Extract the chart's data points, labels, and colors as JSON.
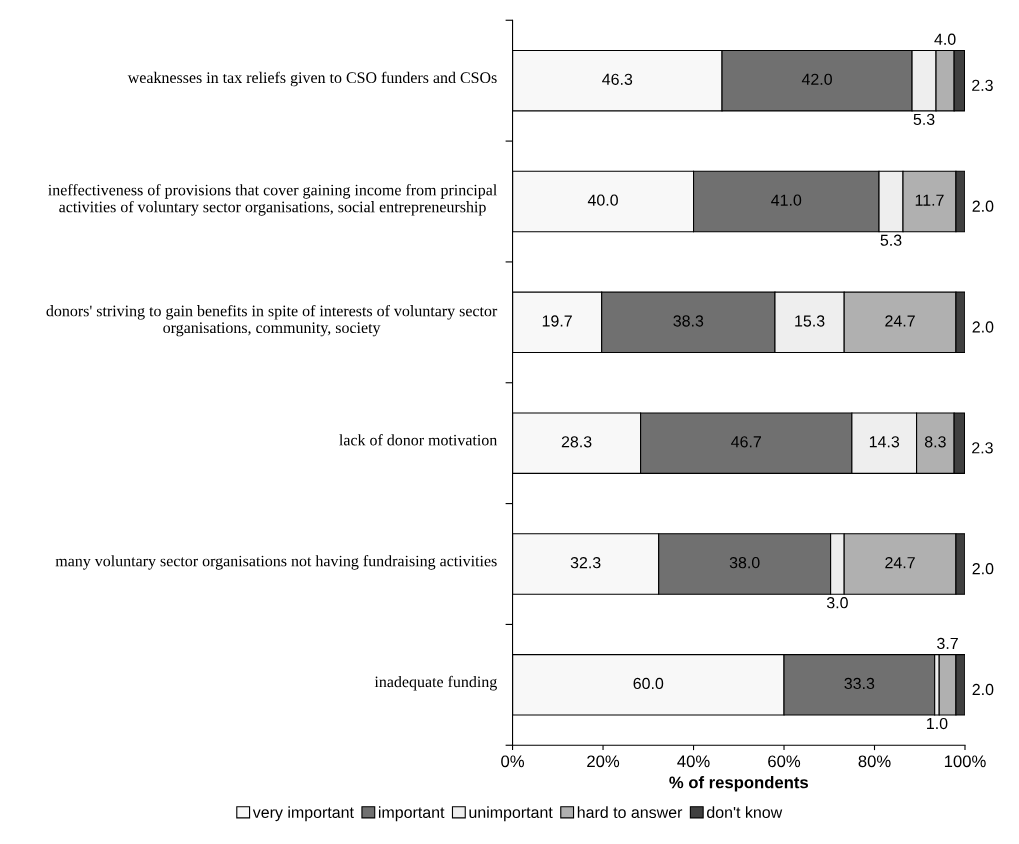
{
  "chart_data": {
    "type": "bar",
    "orientation": "horizontal",
    "stacked": true,
    "xlabel": "% of respondents",
    "categories": [
      "weaknesses in tax reliefs given to CSO funders and CSOs",
      "ineffectiveness of provisions that cover gaining income from principal activities of voluntary sector organisations, social entrepreneurship",
      "donors' striving to gain benefits in spite of interests of voluntary sector organisations, community, society",
      "lack of donor motivation",
      "many voluntary sector organisations not having fundraising activities",
      "inadequate funding"
    ],
    "series": [
      {
        "name": "very important",
        "color": "#f8f8f8",
        "values": [
          46.3,
          40.0,
          19.7,
          28.3,
          32.3,
          60.0
        ],
        "value_labels": [
          "46.3",
          "40.0",
          "19.7",
          "28.3",
          "32.3",
          "60.0"
        ]
      },
      {
        "name": "important",
        "color": "#707070",
        "values": [
          42.0,
          41.0,
          38.3,
          46.7,
          38.0,
          33.3
        ],
        "value_labels": [
          "42.0",
          "41.0",
          "38.3",
          "46.7",
          "38.0",
          "33.3"
        ]
      },
      {
        "name": "unimportant",
        "color": "#eeeeee",
        "values": [
          5.3,
          5.3,
          15.3,
          14.3,
          3.0,
          1.0
        ],
        "value_labels": [
          "5.3",
          "5.3",
          "15.3",
          "14.3",
          "3.0",
          "1.0"
        ]
      },
      {
        "name": "hard to answer",
        "color": "#b0b0b0",
        "values": [
          4.0,
          11.7,
          24.7,
          8.3,
          24.7,
          3.7
        ],
        "value_labels": [
          "4.0",
          "11.7",
          "24.7",
          "8.3",
          "24.7",
          "3.7"
        ]
      },
      {
        "name": "don't know",
        "color": "#404040",
        "values": [
          2.3,
          2.0,
          2.0,
          2.3,
          2.0,
          2.0
        ],
        "value_labels": [
          "2.3",
          "2.0",
          "2.0",
          "2.3",
          "2.0",
          "2.0"
        ]
      }
    ],
    "xlim": [
      0,
      100
    ],
    "xticks": [
      {
        "value": 0,
        "label": "0%"
      },
      {
        "value": 20,
        "label": "20%"
      },
      {
        "value": 40,
        "label": "40%"
      },
      {
        "value": 60,
        "label": "60%"
      },
      {
        "value": 80,
        "label": "80%"
      },
      {
        "value": 100,
        "label": "100%"
      }
    ],
    "grid": false,
    "legend": "bottom"
  }
}
